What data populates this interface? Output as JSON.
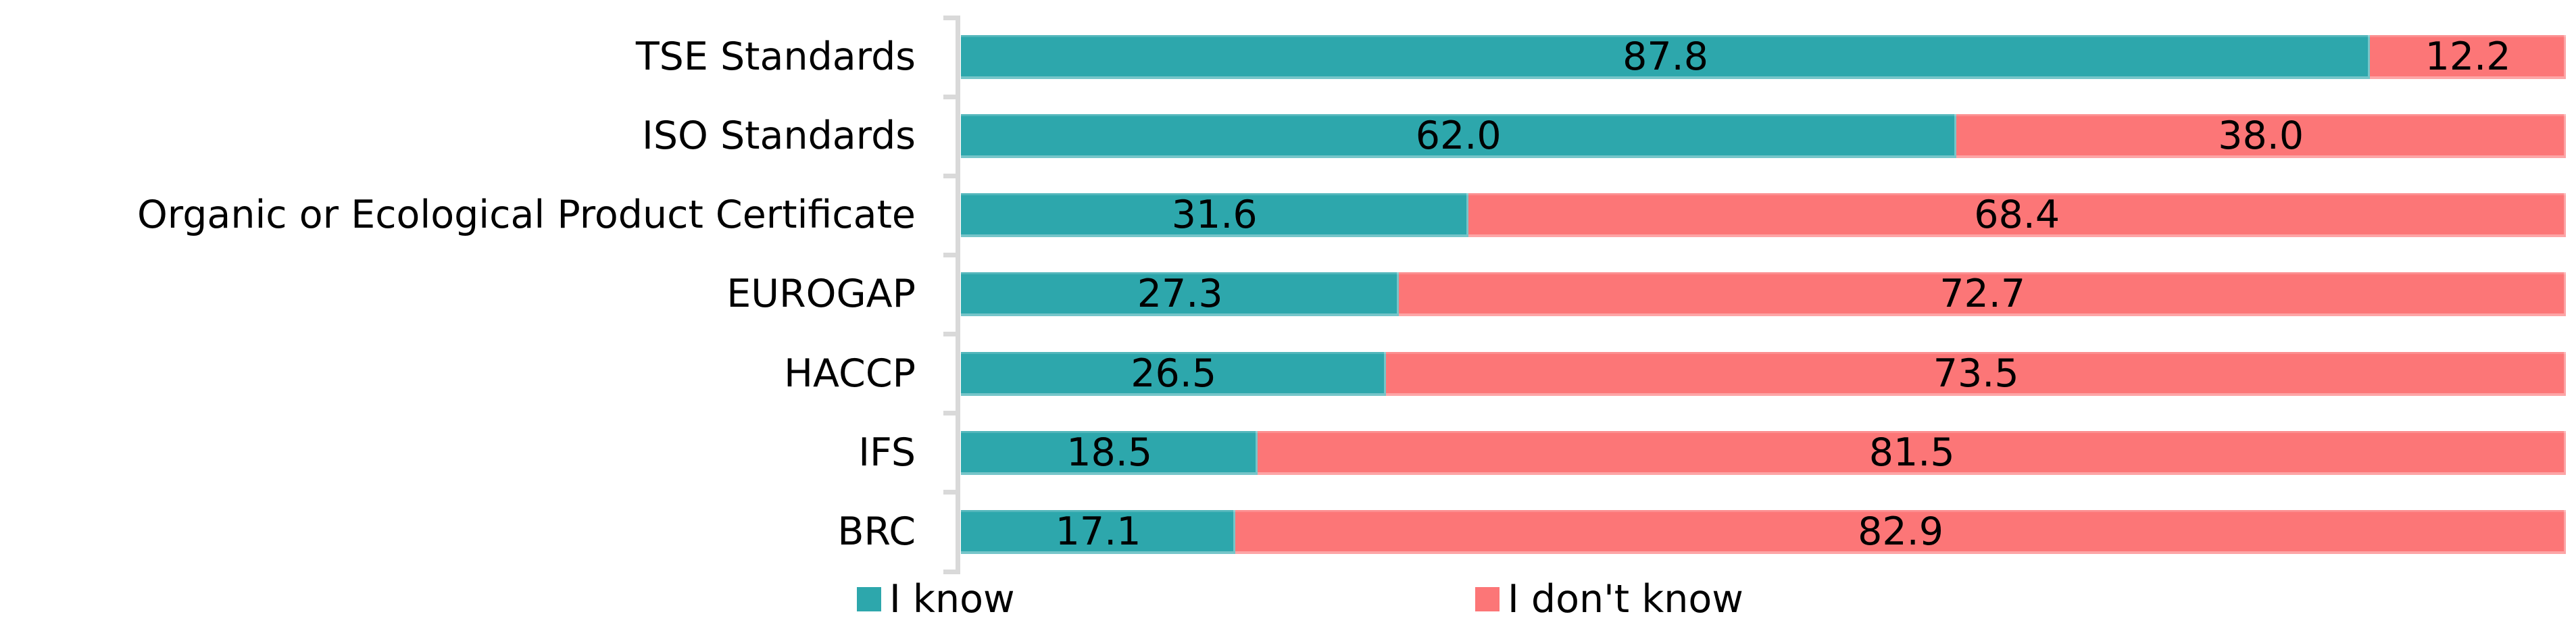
{
  "chart_data": {
    "type": "bar",
    "orientation": "horizontal",
    "stacked": true,
    "unit": "percent",
    "title": "",
    "xlabel": "",
    "ylabel": "",
    "xlim": [
      0,
      100
    ],
    "grid": false,
    "legend_position": "bottom",
    "axis_color": "#D9D9D9",
    "categories": [
      "TSE Standards",
      "ISO Standards",
      "Organic or Ecological Product Certificate",
      "EUROGAP",
      "HACCP",
      "IFS",
      "BRC"
    ],
    "series": [
      {
        "name": "I know",
        "color": "#2DA7AC",
        "values": [
          87.8,
          62.0,
          31.6,
          27.3,
          26.5,
          18.5,
          17.1
        ]
      },
      {
        "name": "I don't know",
        "color": "#FC7677",
        "values": [
          12.2,
          38.0,
          68.4,
          72.7,
          73.5,
          81.5,
          82.9
        ]
      }
    ],
    "value_labels": [
      [
        "87.8",
        "12.2"
      ],
      [
        "62.0",
        "38.0"
      ],
      [
        "31.6",
        "68.4"
      ],
      [
        "27.3",
        "72.7"
      ],
      [
        "26.5",
        "73.5"
      ],
      [
        "18.5",
        "81.5"
      ],
      [
        "17.1",
        "82.9"
      ]
    ]
  },
  "legend": {
    "items": [
      {
        "label": "I know",
        "color": "#2DA7AC"
      },
      {
        "label": "I don't know",
        "color": "#FC7677"
      }
    ]
  }
}
